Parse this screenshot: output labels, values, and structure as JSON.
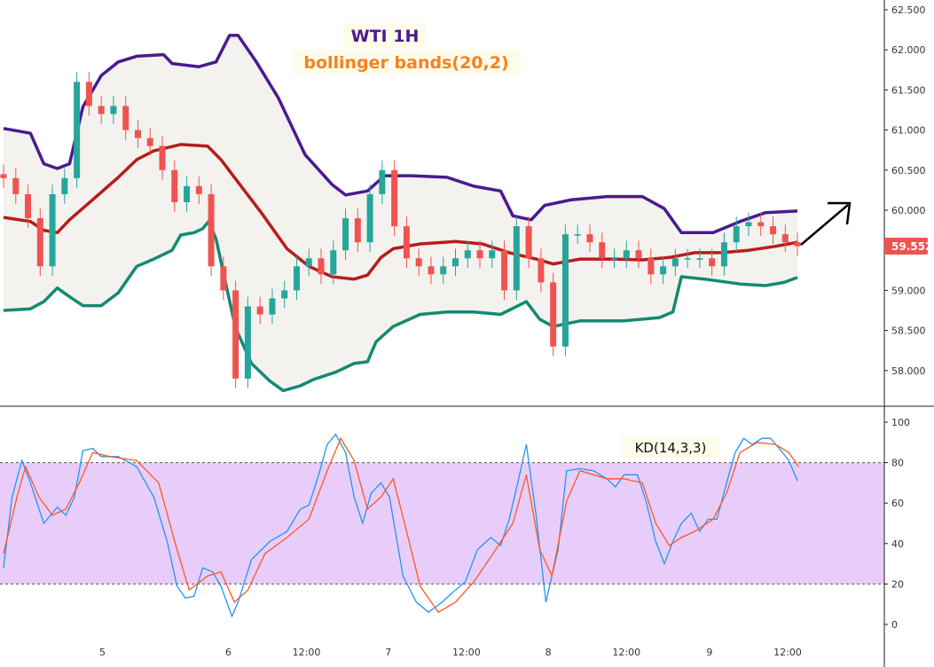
{
  "chart_data": {
    "type": "candlestick",
    "title": "WTI 1H",
    "subtitle": "bollinger bands(20,2)",
    "price_axis": {
      "ticks": [
        "62.500",
        "62.000",
        "61.500",
        "61.000",
        "60.500",
        "60.000",
        "59.000",
        "58.500",
        "58.000"
      ],
      "tick_values": [
        62.5,
        62.0,
        61.5,
        61.0,
        60.5,
        60.0,
        59.0,
        58.5,
        58.0
      ],
      "range": [
        57.7,
        62.6
      ]
    },
    "last_price": "59.552",
    "last_price_value": 59.552,
    "x_axis": {
      "labels": [
        "5",
        "6",
        "12:00",
        "7",
        "12:00",
        "8",
        "12:00",
        "9",
        "12:00"
      ],
      "label_bars": [
        8.1,
        18.4,
        24.8,
        31.5,
        37.9,
        44.6,
        51.0,
        57.8,
        64.2
      ]
    },
    "candles": {
      "close": [
        60.4,
        60.2,
        59.9,
        59.3,
        60.2,
        60.4,
        61.6,
        61.3,
        61.2,
        61.3,
        61.0,
        60.9,
        60.8,
        60.5,
        60.1,
        60.3,
        60.2,
        59.3,
        59.0,
        57.9,
        58.8,
        58.7,
        58.9,
        59.0,
        59.3,
        59.4,
        59.2,
        59.5,
        59.9,
        59.6,
        60.2,
        60.5,
        59.8,
        59.4,
        59.3,
        59.2,
        59.3,
        59.4,
        59.5,
        59.4,
        59.5,
        59.0,
        59.8,
        59.4,
        59.1,
        58.3,
        59.7,
        59.7,
        59.6,
        59.4,
        59.4,
        59.5,
        59.4,
        59.2,
        59.3,
        59.4,
        59.4,
        59.4,
        59.3,
        59.6,
        59.8,
        59.85,
        59.8,
        59.7,
        59.6,
        59.55
      ]
    },
    "bollinger": {
      "upper": {
        "t": [
          0,
          2.2,
          3.3,
          4.4,
          5.4,
          6.5,
          8.0,
          9.4,
          10.9,
          13.1,
          13.8,
          16.0,
          17.4,
          18.5,
          19.2,
          20.7,
          22.5,
          24.7,
          26.9,
          28.0,
          29.8,
          31.2,
          33.4,
          36.3,
          38.5,
          40.7,
          41.7,
          43.2,
          44.3,
          46.5,
          49.4,
          52.3,
          54.1,
          55.5,
          58.1,
          60.3,
          62.4,
          65.0
        ],
        "v": [
          61.02,
          60.96,
          60.58,
          60.52,
          60.58,
          61.29,
          61.68,
          61.85,
          61.92,
          61.94,
          61.83,
          61.79,
          61.85,
          62.18,
          62.18,
          61.85,
          61.4,
          60.69,
          60.32,
          60.19,
          60.24,
          60.43,
          60.43,
          60.41,
          60.3,
          60.24,
          59.93,
          59.88,
          60.06,
          60.13,
          60.17,
          60.17,
          60.02,
          59.72,
          59.72,
          59.86,
          59.97,
          59.99
        ]
      },
      "middle": {
        "t": [
          0,
          2.2,
          3.3,
          4.4,
          5.4,
          7.3,
          9.4,
          10.9,
          12.3,
          14.5,
          16.7,
          17.8,
          19.2,
          21.1,
          23.2,
          25.0,
          26.9,
          28.7,
          29.8,
          30.9,
          31.9,
          34.1,
          37.0,
          39.2,
          41.4,
          43.6,
          45.0,
          47.2,
          50.1,
          52.3,
          54.5,
          56.6,
          58.8,
          61.0,
          63.2,
          65.0
        ],
        "v": [
          59.91,
          59.86,
          59.75,
          59.72,
          59.88,
          60.13,
          60.41,
          60.63,
          60.74,
          60.82,
          60.8,
          60.63,
          60.35,
          59.97,
          59.52,
          59.3,
          59.17,
          59.14,
          59.19,
          59.41,
          59.52,
          59.58,
          59.61,
          59.58,
          59.47,
          59.39,
          59.33,
          59.39,
          59.39,
          59.38,
          59.41,
          59.47,
          59.47,
          59.5,
          59.55,
          59.6
        ]
      },
      "lower": {
        "t": [
          0,
          2.2,
          3.3,
          4.4,
          5.4,
          6.5,
          8.0,
          9.4,
          10.9,
          12.3,
          13.8,
          14.5,
          15.6,
          16.3,
          16.8,
          17.4,
          18.2,
          19.0,
          20.3,
          21.8,
          22.9,
          24.3,
          25.4,
          27.2,
          28.7,
          29.8,
          30.5,
          31.9,
          34.1,
          36.3,
          38.5,
          40.7,
          42.8,
          43.9,
          45.0,
          47.2,
          50.8,
          53.7,
          54.8,
          55.5,
          57.4,
          60.3,
          62.4,
          63.9,
          65.0
        ],
        "v": [
          58.75,
          58.77,
          58.86,
          59.03,
          58.92,
          58.81,
          58.81,
          58.97,
          59.3,
          59.39,
          59.5,
          59.69,
          59.72,
          59.77,
          59.86,
          59.64,
          59.08,
          58.53,
          58.09,
          57.87,
          57.75,
          57.81,
          57.89,
          57.98,
          58.09,
          58.11,
          58.36,
          58.55,
          58.7,
          58.73,
          58.73,
          58.7,
          58.86,
          58.64,
          58.55,
          58.62,
          58.62,
          58.66,
          58.73,
          59.17,
          59.14,
          59.08,
          59.06,
          59.1,
          59.16
        ]
      }
    },
    "kd": {
      "label": "KD(14,3,3)",
      "axis_ticks": [
        "100",
        "80",
        "60",
        "40",
        "20",
        "0"
      ],
      "axis_values": [
        100,
        80,
        60,
        40,
        20,
        0
      ],
      "levels": [
        80,
        20
      ],
      "k": {
        "t": [
          0,
          0.7,
          1.5,
          2.2,
          3.3,
          4.4,
          5.1,
          5.8,
          6.5,
          7.3,
          8.0,
          9.4,
          10.9,
          12.3,
          13.4,
          14.2,
          14.9,
          15.6,
          16.3,
          17.1,
          17.8,
          18.7,
          19.2,
          20.3,
          21.8,
          23.2,
          24.3,
          25.0,
          25.8,
          26.5,
          27.2,
          28.0,
          28.7,
          29.4,
          30.1,
          30.9,
          31.6,
          32.7,
          33.8,
          34.8,
          35.9,
          37.0,
          37.8,
          38.8,
          39.9,
          40.7,
          41.4,
          42.1,
          42.8,
          43.6,
          44.4,
          45.4,
          46.1,
          47.2,
          48.3,
          49.4,
          50.1,
          50.8,
          51.9,
          52.6,
          53.4,
          54.1,
          54.8,
          55.5,
          56.3,
          57.0,
          57.7,
          58.4,
          59.2,
          59.9,
          60.6,
          61.3,
          62.1,
          62.8,
          63.5,
          64.3,
          65.0
        ],
        "v": [
          28,
          63,
          81,
          70,
          50,
          58,
          54,
          63,
          86,
          87,
          83,
          83,
          78,
          63,
          41,
          19,
          13,
          14,
          28,
          26,
          19,
          4,
          11,
          32,
          41,
          46,
          57,
          59,
          74,
          89,
          94,
          85,
          63,
          50,
          65,
          70,
          63,
          24,
          11,
          6,
          11,
          17,
          21,
          37,
          43,
          39,
          52,
          70,
          89,
          54,
          11,
          37,
          76,
          77,
          76,
          72,
          68,
          74,
          74,
          61,
          41,
          30,
          41,
          50,
          55,
          46,
          52,
          52,
          70,
          85,
          92,
          89,
          92,
          92,
          87,
          81,
          71
        ]
      },
      "d": {
        "t": [
          0,
          1.1,
          1.8,
          2.9,
          4.0,
          5.1,
          6.2,
          7.3,
          8.7,
          10.9,
          12.7,
          14.2,
          15.2,
          16.7,
          17.8,
          18.9,
          20.0,
          21.4,
          23.2,
          25.0,
          26.5,
          27.6,
          28.7,
          29.8,
          30.9,
          31.9,
          33.0,
          34.1,
          35.6,
          37.0,
          38.5,
          40.3,
          41.7,
          42.8,
          43.9,
          44.9,
          46.1,
          47.2,
          49.4,
          50.8,
          52.3,
          53.4,
          54.5,
          55.5,
          56.6,
          58.1,
          59.2,
          60.3,
          61.7,
          63.2,
          64.3,
          65.1
        ],
        "v": [
          35,
          63,
          78,
          63,
          54,
          57,
          70,
          85,
          83,
          81,
          70,
          37,
          17,
          24,
          26,
          11,
          17,
          35,
          43,
          52,
          76,
          92,
          81,
          57,
          63,
          72,
          46,
          19,
          6,
          11,
          21,
          37,
          50,
          74,
          37,
          24,
          61,
          76,
          72,
          72,
          70,
          50,
          39,
          43,
          46,
          52,
          65,
          85,
          90,
          89,
          85,
          78
        ]
      }
    },
    "colors": {
      "up": "#26a69a",
      "down": "#ef5350",
      "upper": "#4b1a8f",
      "middle": "#b71c1c",
      "lower": "#138a72",
      "band_fill": "#f3f2ee",
      "k": "#2196f3",
      "d": "#ff5722",
      "kd_fill": "#e8cdfa"
    }
  }
}
